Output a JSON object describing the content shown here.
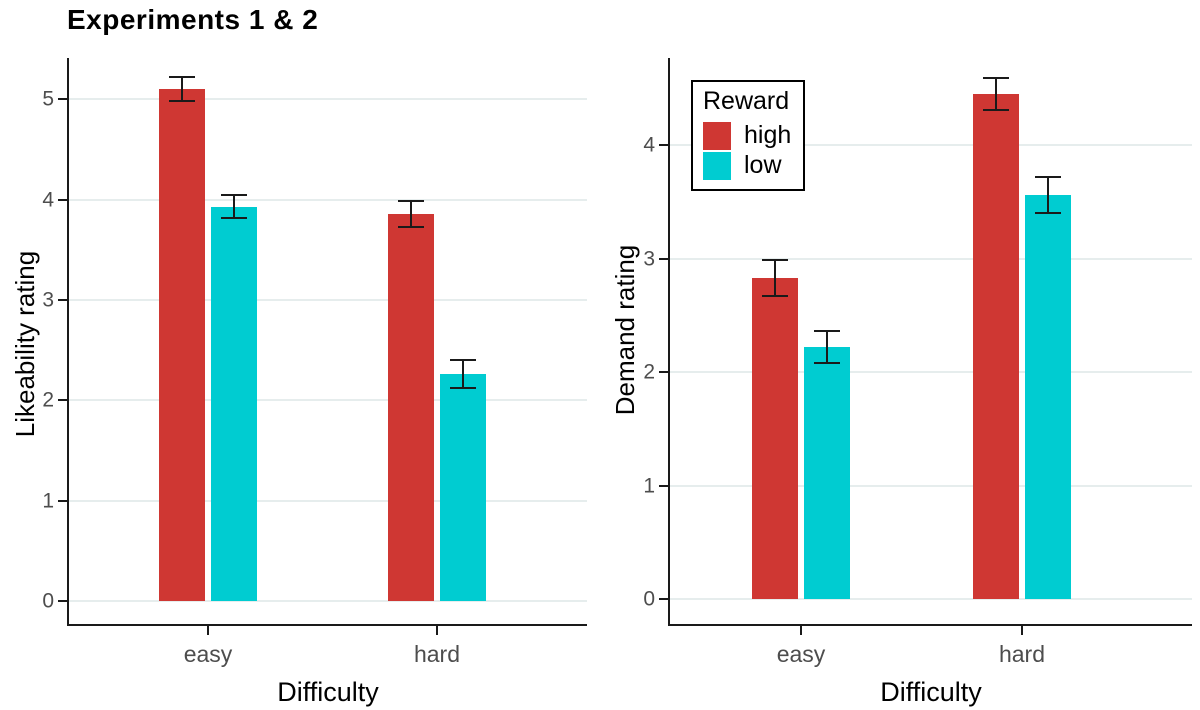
{
  "chart_data": [
    {
      "type": "bar",
      "panel": "likeability",
      "title": "Experiments 1 & 2",
      "ylabel": "Likeability rating",
      "xlabel": "Difficulty",
      "categories": [
        "easy",
        "hard"
      ],
      "series": [
        {
          "name": "high",
          "color": "#cf3733",
          "values": [
            5.1,
            3.86
          ],
          "errors": [
            0.12,
            0.13
          ]
        },
        {
          "name": "low",
          "color": "#00ccd1",
          "values": [
            3.93,
            2.26
          ],
          "errors": [
            0.11,
            0.14
          ]
        }
      ],
      "yticks": [
        0,
        1,
        2,
        3,
        4,
        5
      ],
      "ylim": [
        -0.23,
        5.41
      ],
      "grid": true,
      "legend_position": "none"
    },
    {
      "type": "bar",
      "panel": "demand",
      "title": "",
      "ylabel": "Demand rating",
      "xlabel": "Difficulty",
      "categories": [
        "easy",
        "hard"
      ],
      "series": [
        {
          "name": "high",
          "color": "#cf3733",
          "values": [
            2.83,
            4.45
          ],
          "errors": [
            0.16,
            0.14
          ]
        },
        {
          "name": "low",
          "color": "#00ccd1",
          "values": [
            2.22,
            3.56
          ],
          "errors": [
            0.14,
            0.16
          ]
        }
      ],
      "yticks": [
        0,
        1,
        2,
        3,
        4
      ],
      "ylim": [
        -0.22,
        4.77
      ],
      "grid": true,
      "legend_position": "top-left-inside"
    }
  ],
  "legend": {
    "title": "Reward",
    "items": [
      {
        "label": "high",
        "color": "#cf3733"
      },
      {
        "label": "low",
        "color": "#00ccd1"
      }
    ]
  },
  "style": {
    "grid_color": "#e6eded",
    "axis_text_color": "#4d4d4d",
    "axis_line_color": "#1a1a1a",
    "background": "#ffffff"
  }
}
